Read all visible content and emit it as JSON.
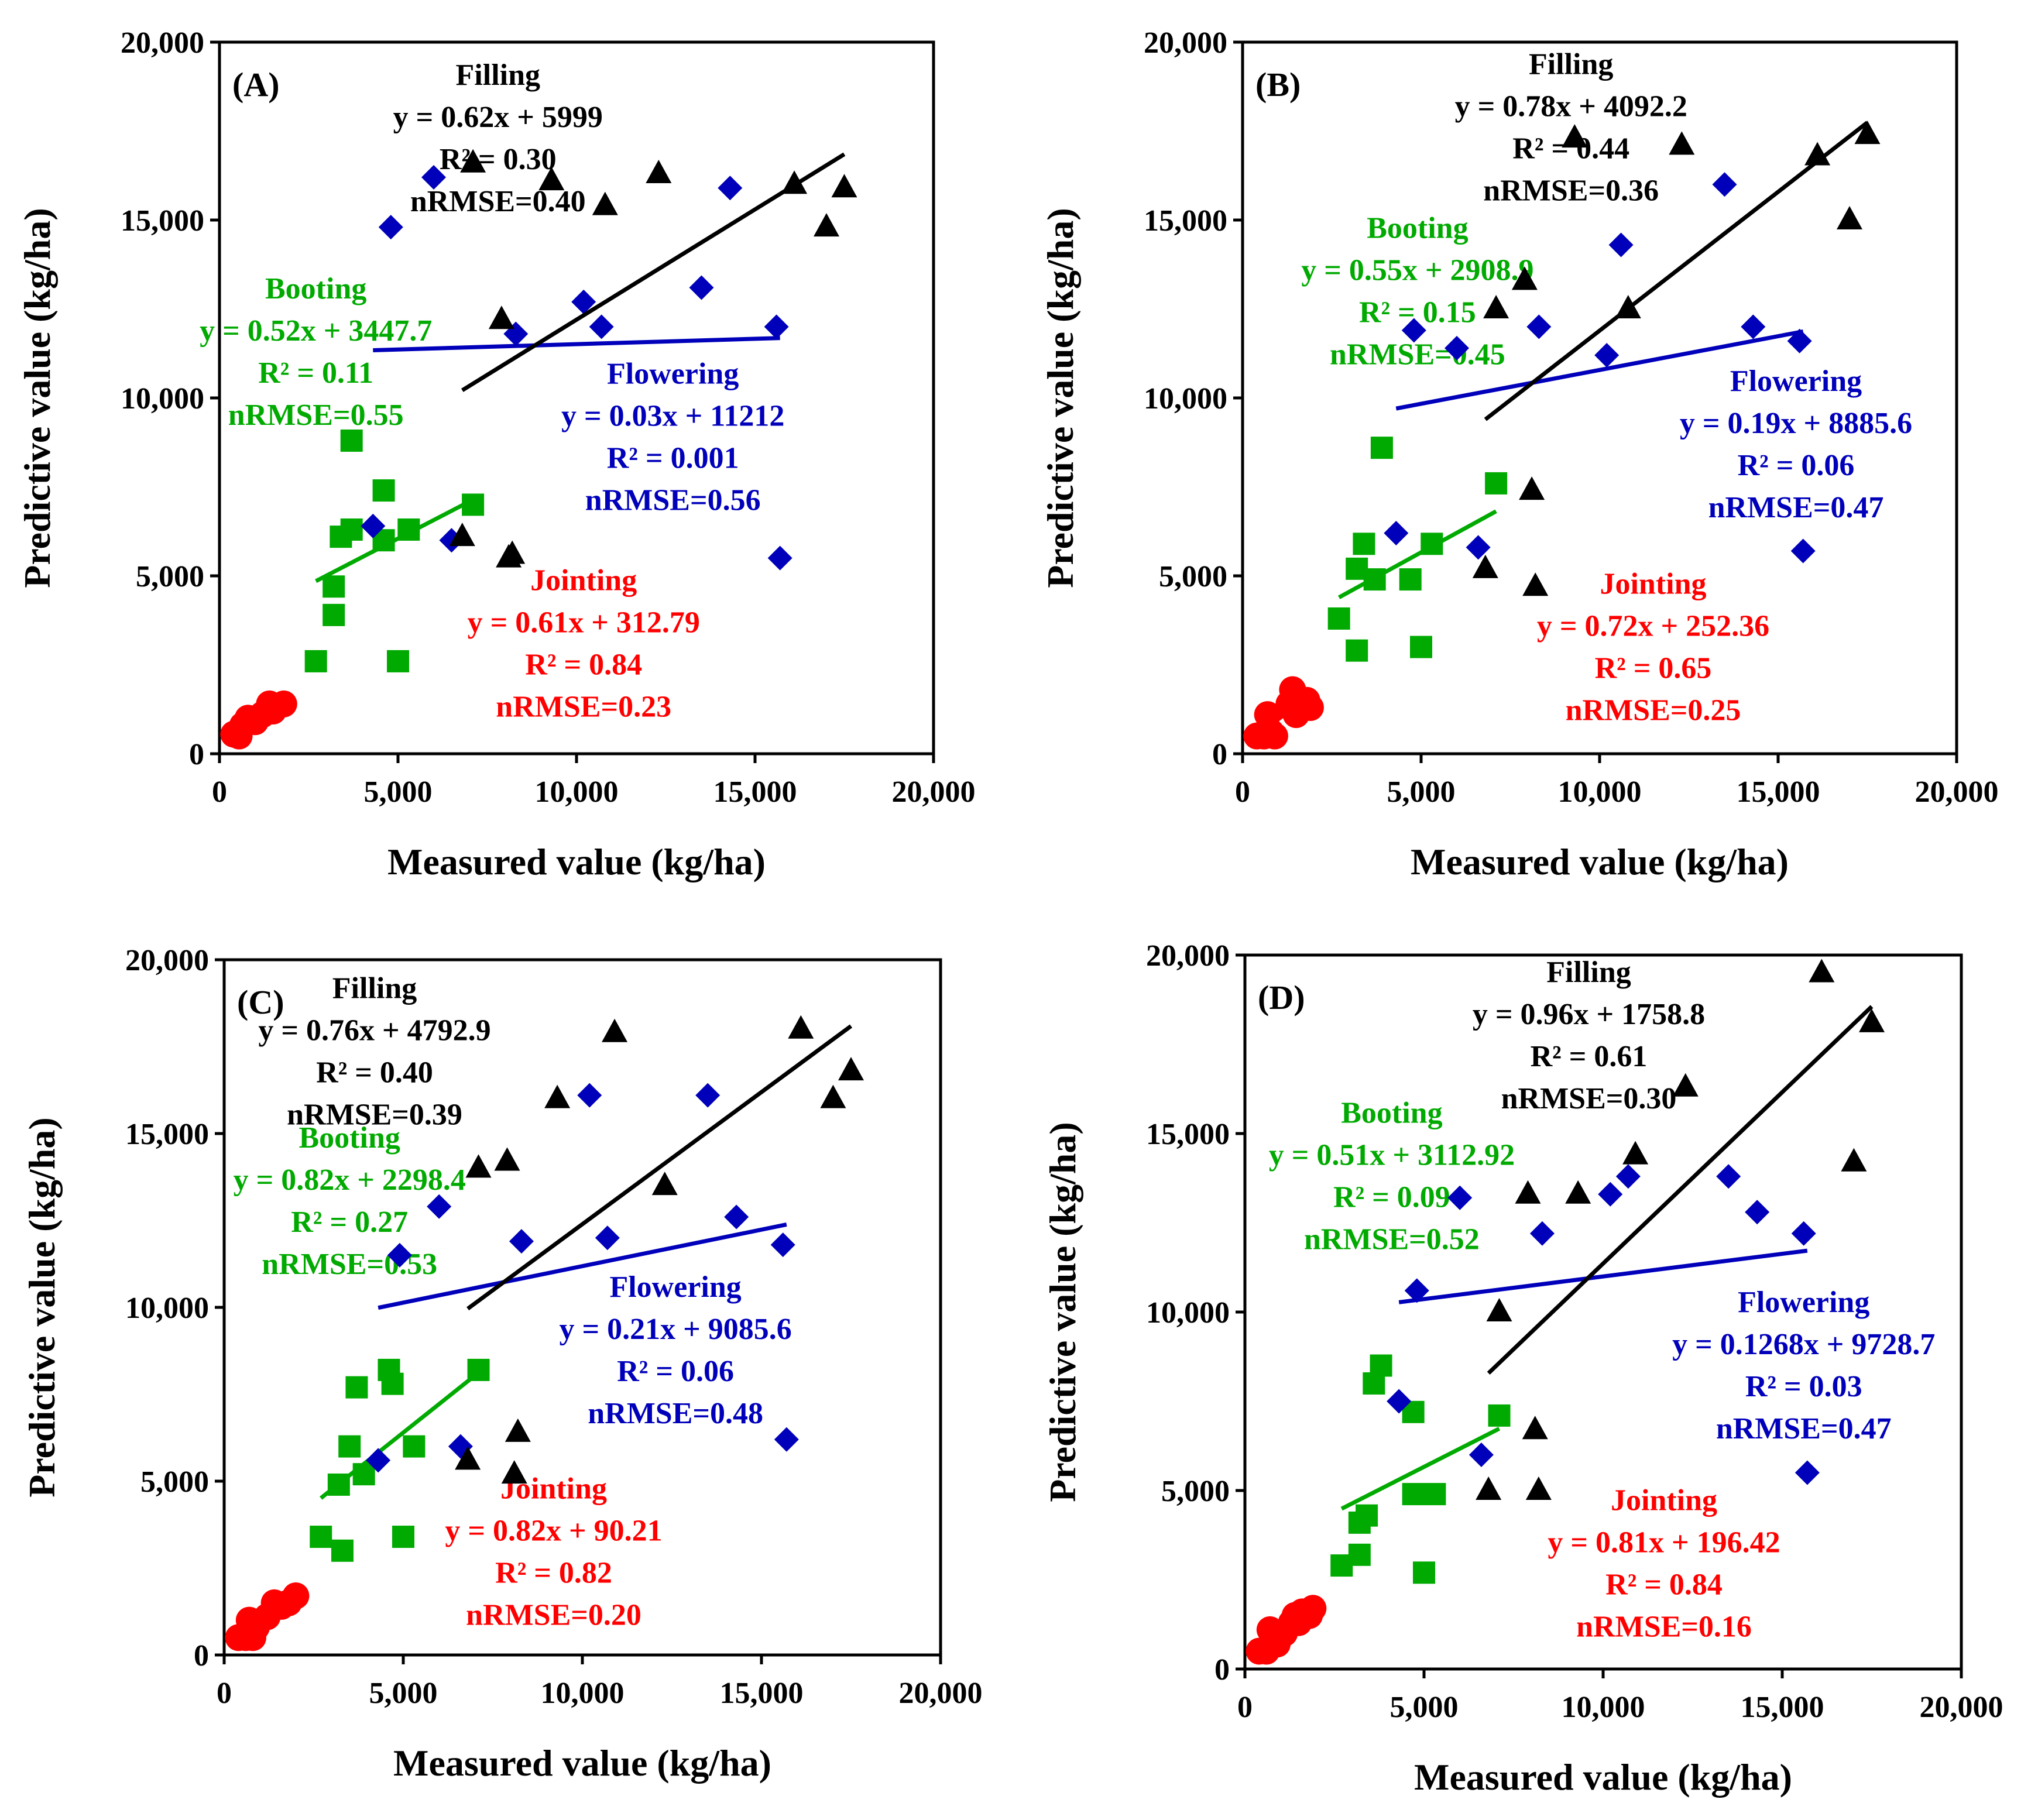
{
  "chart_data": [
    {
      "type": "scatter",
      "panel_label": "(A)",
      "xlabel": "Measured value (kg/ha)",
      "ylabel": "Predictive value (kg/ha)",
      "xlim": [
        0,
        20000
      ],
      "ylim": [
        0,
        20000
      ],
      "xticks": [
        "0",
        "5,000",
        "10,000",
        "15,000",
        "20,000"
      ],
      "yticks": [
        "0",
        "5,000",
        "10,000",
        "15,000",
        "20,000"
      ],
      "series": [
        {
          "name": "Jointing",
          "color": "#ff0000",
          "marker": "circle",
          "equation": "y = 0.61x + 312.79",
          "r2": "R² = 0.84",
          "nrmse": "nRMSE=0.23",
          "fit": {
            "slope": 0.61,
            "intercept": 312.79,
            "x": [
              400,
              1800
            ]
          },
          "x": [
            400,
            550,
            650,
            800,
            1000,
            1200,
            1400,
            1500,
            1800
          ],
          "y": [
            550,
            500,
            800,
            1000,
            900,
            1100,
            1400,
            1200,
            1400
          ]
        },
        {
          "name": "Booting",
          "color": "#00aa00",
          "marker": "square",
          "equation": "y = 0.52x + 3447.7",
          "r2": "R² = 0.11",
          "nrmse": "nRMSE=0.55",
          "fit": {
            "slope": 0.52,
            "intercept": 3447.7,
            "x": [
              2700,
              7100
            ]
          },
          "x": [
            2700,
            3200,
            3200,
            3400,
            3700,
            3700,
            4600,
            4600,
            5000,
            5300,
            7100
          ],
          "y": [
            2600,
            3900,
            4700,
            6100,
            8800,
            6300,
            6000,
            7400,
            2600,
            6300,
            7000
          ]
        },
        {
          "name": "Flowering",
          "color": "#0000bb",
          "marker": "diamond",
          "equation": "y = 0.03x + 11212",
          "r2": "R² = 0.001",
          "nrmse": "nRMSE=0.56",
          "fit": {
            "slope": 0.03,
            "intercept": 11212,
            "x": [
              4300,
              15700
            ]
          },
          "x": [
            4300,
            4800,
            6000,
            6500,
            8300,
            10200,
            10700,
            13500,
            14300,
            15600,
            15700
          ],
          "y": [
            6400,
            14800,
            16200,
            6000,
            11800,
            12700,
            12000,
            13100,
            15900,
            12000,
            5500
          ]
        },
        {
          "name": "Filling",
          "color": "#000000",
          "marker": "triangle",
          "equation": "y = 0.62x + 5999",
          "r2": "R² = 0.30",
          "nrmse": "nRMSE=0.40",
          "fit": {
            "slope": 0.62,
            "intercept": 5999,
            "x": [
              6800,
              17500
            ]
          },
          "x": [
            6800,
            7100,
            7900,
            8100,
            8200,
            9300,
            10800,
            12300,
            16100,
            17000,
            17500
          ],
          "y": [
            6100,
            16600,
            12200,
            5500,
            5600,
            16100,
            15400,
            16300,
            16000,
            14800,
            15900
          ]
        }
      ]
    },
    {
      "type": "scatter",
      "panel_label": "(B)",
      "xlabel": "Measured value (kg/ha)",
      "ylabel": "Predictive value (kg/ha)",
      "xlim": [
        0,
        20000
      ],
      "ylim": [
        0,
        20000
      ],
      "xticks": [
        "0",
        "5,000",
        "10,000",
        "15,000",
        "20,000"
      ],
      "yticks": [
        "0",
        "5,000",
        "10,000",
        "15,000",
        "20,000"
      ],
      "series": [
        {
          "name": "Jointing",
          "color": "#ff0000",
          "marker": "circle",
          "equation": "y = 0.72x + 252.36",
          "r2": "R² = 0.65",
          "nrmse": "nRMSE=0.25",
          "fit": {
            "slope": 0.72,
            "intercept": 252.36,
            "x": [
              400,
              1900
            ]
          },
          "x": [
            400,
            600,
            700,
            800,
            900,
            1300,
            1400,
            1500,
            1600,
            1800,
            1900
          ],
          "y": [
            500,
            500,
            1100,
            600,
            500,
            1400,
            1800,
            1100,
            1300,
            1500,
            1300
          ]
        },
        {
          "name": "Booting",
          "color": "#00aa00",
          "marker": "square",
          "equation": "y = 0.55x + 2908.9",
          "r2": "R² = 0.15",
          "nrmse": "nRMSE=0.45",
          "fit": {
            "slope": 0.55,
            "intercept": 2908.9,
            "x": [
              2700,
              7100
            ]
          },
          "x": [
            2700,
            3200,
            3200,
            3400,
            3700,
            3900,
            4700,
            5000,
            5300,
            7100
          ],
          "y": [
            3800,
            2900,
            5200,
            5900,
            4900,
            8600,
            4900,
            3000,
            5900,
            7600
          ]
        },
        {
          "name": "Flowering",
          "color": "#0000bb",
          "marker": "diamond",
          "equation": "y = 0.19x + 8885.6",
          "r2": "R² = 0.06",
          "nrmse": "nRMSE=0.47",
          "fit": {
            "slope": 0.19,
            "intercept": 8885.6,
            "x": [
              4300,
              15700
            ]
          },
          "x": [
            4300,
            4800,
            6000,
            6600,
            8300,
            10200,
            10600,
            13500,
            14300,
            15600,
            15700
          ],
          "y": [
            6200,
            11900,
            11400,
            5800,
            12000,
            11200,
            14300,
            16000,
            12000,
            11600,
            5700
          ]
        },
        {
          "name": "Filling",
          "color": "#000000",
          "marker": "triangle",
          "equation": "y = 0.78x + 4092.2",
          "r2": "R² = 0.44",
          "nrmse": "nRMSE=0.36",
          "fit": {
            "slope": 0.78,
            "intercept": 4092.2,
            "x": [
              6800,
              17500
            ]
          },
          "x": [
            6800,
            7100,
            7900,
            8100,
            8200,
            9300,
            10800,
            12300,
            16100,
            17000,
            17500
          ],
          "y": [
            5200,
            12500,
            13300,
            7400,
            4700,
            17300,
            12500,
            17100,
            16800,
            15000,
            17400
          ]
        }
      ]
    },
    {
      "type": "scatter",
      "panel_label": "(C)",
      "xlabel": "Measured value (kg/ha)",
      "ylabel": "Predictive value (kg/ha)",
      "xlim": [
        0,
        20000
      ],
      "ylim": [
        0,
        20000
      ],
      "xticks": [
        "0",
        "5,000",
        "10,000",
        "15,000",
        "20,000"
      ],
      "yticks": [
        "0",
        "5,000",
        "10,000",
        "15,000",
        "20,000"
      ],
      "series": [
        {
          "name": "Jointing",
          "color": "#ff0000",
          "marker": "circle",
          "equation": "y = 0.82x + 90.21",
          "r2": "R² = 0.82",
          "nrmse": "nRMSE=0.20",
          "fit": {
            "slope": 0.82,
            "intercept": 90.21,
            "x": [
              400,
              2000
            ]
          },
          "x": [
            400,
            600,
            700,
            800,
            900,
            1200,
            1400,
            1600,
            1800,
            2000
          ],
          "y": [
            500,
            500,
            1000,
            500,
            800,
            1100,
            1500,
            1400,
            1500,
            1700
          ]
        },
        {
          "name": "Booting",
          "color": "#00aa00",
          "marker": "square",
          "equation": "y = 0.82x + 2298.4",
          "r2": "R² = 0.27",
          "nrmse": "nRMSE=0.53",
          "fit": {
            "slope": 0.82,
            "intercept": 2298.4,
            "x": [
              2700,
              7100
            ]
          },
          "x": [
            2700,
            3200,
            3300,
            3500,
            3700,
            3900,
            4600,
            4700,
            5000,
            5300,
            7100
          ],
          "y": [
            3400,
            4900,
            3000,
            6000,
            7700,
            5200,
            8200,
            7800,
            3400,
            6000,
            8200
          ]
        },
        {
          "name": "Flowering",
          "color": "#0000bb",
          "marker": "diamond",
          "equation": "y = 0.21x + 9085.6",
          "r2": "R² = 0.06",
          "nrmse": "nRMSE=0.48",
          "fit": {
            "slope": 0.21,
            "intercept": 9085.6,
            "x": [
              4300,
              15700
            ]
          },
          "x": [
            4300,
            4900,
            6000,
            6600,
            8300,
            10200,
            10700,
            13500,
            14300,
            15600,
            15700
          ],
          "y": [
            5600,
            11500,
            12900,
            6000,
            11900,
            16100,
            12000,
            16100,
            12600,
            11800,
            6200
          ]
        },
        {
          "name": "Filling",
          "color": "#000000",
          "marker": "triangle",
          "equation": "y = 0.76x + 4792.9",
          "r2": "R² = 0.40",
          "nrmse": "nRMSE=0.39",
          "fit": {
            "slope": 0.76,
            "intercept": 4792.9,
            "x": [
              6800,
              17500
            ]
          },
          "x": [
            6800,
            7100,
            7900,
            8100,
            8200,
            9300,
            10900,
            12300,
            16100,
            17000,
            17500
          ],
          "y": [
            5600,
            14000,
            14200,
            5200,
            6400,
            16000,
            17900,
            13500,
            18000,
            16000,
            16800
          ]
        }
      ]
    },
    {
      "type": "scatter",
      "panel_label": "(D)",
      "xlabel": "Measured value (kg/ha)",
      "ylabel": "Predictive value (kg/ha)",
      "xlim": [
        0,
        20000
      ],
      "ylim": [
        0,
        20000
      ],
      "xticks": [
        "0",
        "5,000",
        "10,000",
        "15,000",
        "20,000"
      ],
      "yticks": [
        "0",
        "5,000",
        "10,000",
        "15,000",
        "20,000"
      ],
      "series": [
        {
          "name": "Jointing",
          "color": "#ff0000",
          "marker": "circle",
          "equation": "y = 0.81x + 196.42",
          "r2": "R² = 0.84",
          "nrmse": "nRMSE=0.16",
          "fit": {
            "slope": 0.81,
            "intercept": 196.42,
            "x": [
              400,
              1900
            ]
          },
          "x": [
            400,
            600,
            700,
            900,
            1100,
            1300,
            1400,
            1500,
            1600,
            1800,
            1900
          ],
          "y": [
            500,
            500,
            1100,
            700,
            1000,
            1300,
            1500,
            1300,
            1600,
            1500,
            1700
          ]
        },
        {
          "name": "Booting",
          "color": "#00aa00",
          "marker": "square",
          "equation": "y = 0.51x + 3112.92",
          "r2": "R² = 0.09",
          "nrmse": "nRMSE=0.52",
          "fit": {
            "slope": 0.51,
            "intercept": 3112.92,
            "x": [
              2700,
              7100
            ]
          },
          "x": [
            2700,
            3200,
            3200,
            3400,
            3600,
            3800,
            4700,
            4700,
            5000,
            5300,
            7100
          ],
          "y": [
            2900,
            3200,
            4100,
            4300,
            8000,
            8500,
            7200,
            4900,
            2700,
            4900,
            7100
          ]
        },
        {
          "name": "Flowering",
          "color": "#0000bb",
          "marker": "diamond",
          "equation": "y = 0.1268x + 9728.7",
          "r2": "R² = 0.03",
          "nrmse": "nRMSE=0.47",
          "fit": {
            "slope": 0.1268,
            "intercept": 9728.7,
            "x": [
              4300,
              15700
            ]
          },
          "x": [
            4300,
            4800,
            6000,
            6600,
            8300,
            10200,
            10700,
            13500,
            14300,
            15600,
            15700
          ],
          "y": [
            7500,
            10600,
            13200,
            6000,
            12200,
            13300,
            13800,
            13800,
            12800,
            12200,
            5500
          ]
        },
        {
          "name": "Filling",
          "color": "#000000",
          "marker": "triangle",
          "equation": "y = 0.96x + 1758.8",
          "r2": "R² = 0.61",
          "nrmse": "nRMSE=0.30",
          "fit": {
            "slope": 0.96,
            "intercept": 1758.8,
            "x": [
              6800,
              17500
            ]
          },
          "x": [
            6800,
            7100,
            7900,
            8100,
            8200,
            9300,
            10900,
            12300,
            16100,
            17000,
            17500
          ],
          "y": [
            5000,
            10000,
            13300,
            6700,
            5000,
            13300,
            14400,
            16300,
            19500,
            14200,
            18100
          ]
        }
      ]
    }
  ]
}
